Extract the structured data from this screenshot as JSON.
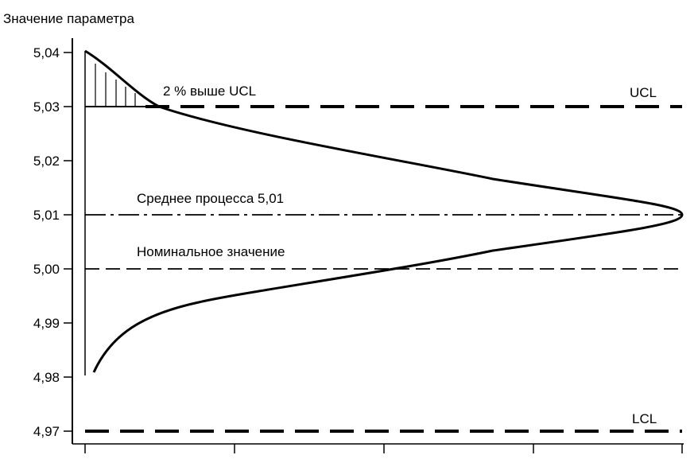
{
  "chart_data": {
    "type": "line",
    "ylabel": "Значение параметра",
    "ylim": [
      4.97,
      5.04
    ],
    "yticks": [
      {
        "value": 5.04,
        "label": "5,04"
      },
      {
        "value": 5.03,
        "label": "5,03"
      },
      {
        "value": 5.02,
        "label": "5,02"
      },
      {
        "value": 5.01,
        "label": "5,01"
      },
      {
        "value": 5.0,
        "label": "5,00"
      },
      {
        "value": 4.99,
        "label": "4,99"
      },
      {
        "value": 4.98,
        "label": "4,98"
      },
      {
        "value": 4.97,
        "label": "4,97"
      }
    ],
    "xticks_count": 4,
    "reference_lines": [
      {
        "value": 5.03,
        "style": "long-dash",
        "label": "UCL"
      },
      {
        "value": 5.01,
        "style": "dash-dot",
        "label": "Среднее процесса 5,01"
      },
      {
        "value": 5.0,
        "style": "dash",
        "label": "Номинальное значение"
      },
      {
        "value": 4.97,
        "style": "long-dash",
        "label": "LCL"
      }
    ],
    "distribution": {
      "shape": "skewed bell curve, peak at mean",
      "mean": 5.01,
      "y_range": [
        4.98,
        5.04
      ]
    },
    "annotations": [
      {
        "text": "2 % выше UCL",
        "near_value": 5.032
      }
    ]
  }
}
